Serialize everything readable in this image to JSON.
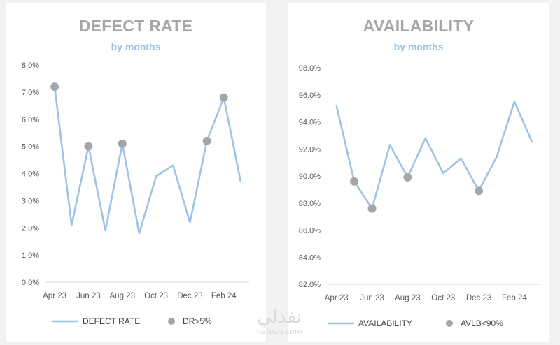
{
  "charts": [
    {
      "title": "DEFECT RATE",
      "subtitle": "by months"
    },
    {
      "title": "AVAILABILITY",
      "subtitle": "by months"
    }
  ],
  "watermark": {
    "arabic": "نفذلي",
    "url": "nafezly.com"
  },
  "chart_data": [
    {
      "type": "line",
      "title": "DEFECT RATE",
      "subtitle": "by months",
      "x": [
        "Apr 23",
        "May 23",
        "Jun 23",
        "Jul 23",
        "Aug 23",
        "Sep 23",
        "Oct 23",
        "Nov 23",
        "Dec 23",
        "Jan 24",
        "Feb 24",
        "Mar 24"
      ],
      "x_tick_labels": [
        "Apr 23",
        "Jun 23",
        "Aug 23",
        "Oct 23",
        "Dec 23",
        "Feb 24"
      ],
      "ylim": [
        0,
        8
      ],
      "y_tick_labels": [
        "0.0%",
        "1.0%",
        "2.0%",
        "3.0%",
        "4.0%",
        "5.0%",
        "6.0%",
        "7.0%",
        "8.0%"
      ],
      "series": [
        {
          "name": "DEFECT RATE",
          "kind": "line",
          "color": "#9dc3e6",
          "values": [
            7.2,
            2.1,
            5.0,
            1.9,
            5.1,
            1.8,
            3.9,
            4.3,
            2.2,
            5.2,
            6.8,
            3.7
          ]
        },
        {
          "name": "DR>5%",
          "kind": "marker",
          "color": "#a6a6a6",
          "points": [
            {
              "x": "Apr 23",
              "y": 7.2
            },
            {
              "x": "Jun 23",
              "y": 5.0
            },
            {
              "x": "Aug 23",
              "y": 5.1
            },
            {
              "x": "Jan 24",
              "y": 5.2
            },
            {
              "x": "Feb 24",
              "y": 6.8
            }
          ]
        }
      ],
      "legend": "bottom",
      "grid": false
    },
    {
      "type": "line",
      "title": "AVAILABILITY",
      "subtitle": "by months",
      "x": [
        "Apr 23",
        "May 23",
        "Jun 23",
        "Jul 23",
        "Aug 23",
        "Sep 23",
        "Oct 23",
        "Nov 23",
        "Dec 23",
        "Jan 24",
        "Feb 24",
        "Mar 24"
      ],
      "x_tick_labels": [
        "Apr 23",
        "Jun 23",
        "Aug 23",
        "Oct 23",
        "Dec 23",
        "Feb 24"
      ],
      "ylim": [
        82,
        98
      ],
      "y_tick_labels": [
        "82.0%",
        "84.0%",
        "86.0%",
        "88.0%",
        "90.0%",
        "92.0%",
        "94.0%",
        "96.0%",
        "98.0%"
      ],
      "series": [
        {
          "name": "AVAILABILITY",
          "kind": "line",
          "color": "#9dc3e6",
          "values": [
            95.2,
            89.6,
            87.6,
            92.3,
            89.9,
            92.8,
            90.2,
            91.3,
            88.9,
            91.4,
            95.5,
            92.5
          ]
        },
        {
          "name": "AVLB<90%",
          "kind": "marker",
          "color": "#a6a6a6",
          "points": [
            {
              "x": "May 23",
              "y": 89.6
            },
            {
              "x": "Jun 23",
              "y": 87.6
            },
            {
              "x": "Aug 23",
              "y": 89.9
            },
            {
              "x": "Dec 23",
              "y": 88.9
            }
          ]
        }
      ],
      "legend": "bottom",
      "grid": false
    }
  ]
}
